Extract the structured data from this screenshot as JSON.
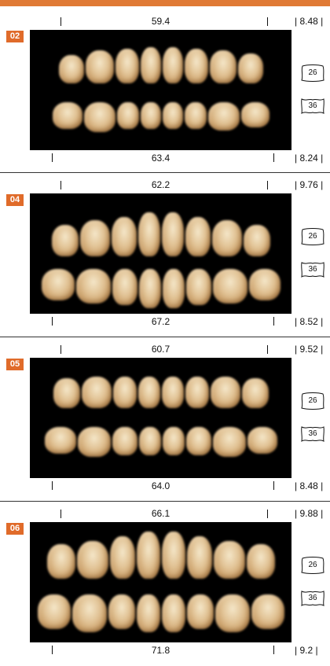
{
  "sets": [
    {
      "code": "02",
      "upper_width": "59.4",
      "upper_height": "| 8.48 |",
      "lower_width": "63.4",
      "lower_height": "| 8.24 |",
      "upper_icon": "26",
      "lower_icon": "36"
    },
    {
      "code": "04",
      "upper_width": "62.2",
      "upper_height": "| 9.76 |",
      "lower_width": "67.2",
      "lower_height": "| 8.52 |",
      "upper_icon": "26",
      "lower_icon": "36"
    },
    {
      "code": "05",
      "upper_width": "60.7",
      "upper_height": "| 9.52 |",
      "lower_width": "64.0",
      "lower_height": "| 8.48 |",
      "upper_icon": "26",
      "lower_icon": "36"
    },
    {
      "code": "06",
      "upper_width": "66.1",
      "upper_height": "| 9.88 |",
      "lower_width": "71.8",
      "lower_height": "| 9.2 |",
      "upper_icon": "26",
      "lower_icon": "36"
    }
  ],
  "colors": {
    "accent": "#e07a35",
    "badge": "#e06b2a",
    "photo_background": "#000000"
  },
  "icons": {
    "upper": "upper-molar-outline-icon",
    "lower": "lower-molar-outline-icon"
  }
}
